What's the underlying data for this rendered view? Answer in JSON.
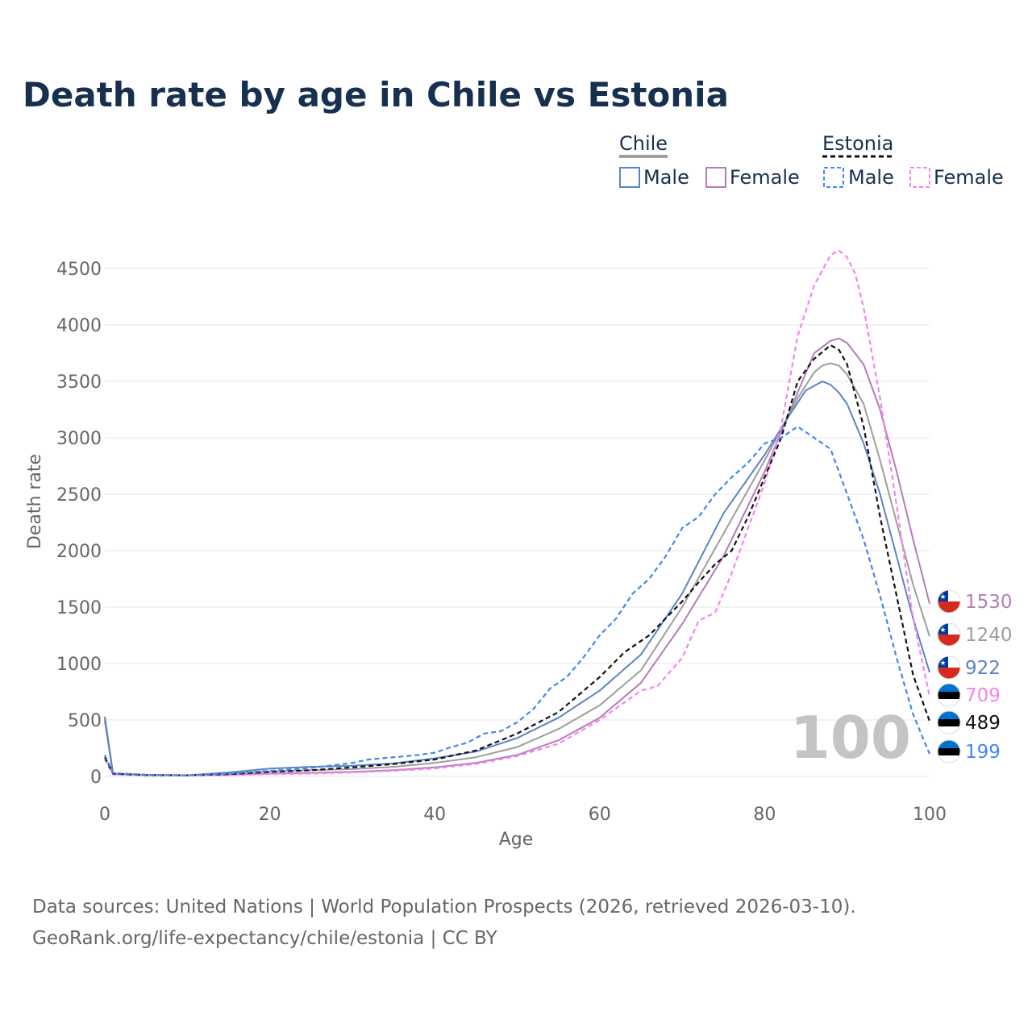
{
  "chart_data": {
    "type": "line",
    "title": "Death rate by age in Chile vs Estonia",
    "xlabel": "Age",
    "ylabel": "Death rate",
    "xlim": [
      0,
      100
    ],
    "ylim": [
      0,
      4700
    ],
    "xticks": [
      0,
      20,
      40,
      60,
      80,
      100
    ],
    "yticks": [
      0,
      500,
      1000,
      1500,
      2000,
      2500,
      3000,
      3500,
      4000,
      4500
    ],
    "watermark_age": "100",
    "legend": {
      "groups": [
        {
          "country": "Chile",
          "items": [
            "Male",
            "Female"
          ]
        },
        {
          "country": "Estonia",
          "items": [
            "Male",
            "Female"
          ]
        }
      ]
    },
    "series": [
      {
        "name": "Chile Female",
        "country": "Chile",
        "sex": "Female",
        "color": "#b47cb8",
        "dashed": false,
        "end_label": "1530",
        "x": [
          0,
          1,
          5,
          10,
          15,
          20,
          25,
          30,
          35,
          40,
          45,
          50,
          55,
          60,
          65,
          70,
          75,
          80,
          84,
          86,
          88,
          89,
          90,
          92,
          94,
          96,
          98,
          100
        ],
        "values": [
          490,
          20,
          12,
          10,
          15,
          25,
          32,
          40,
          55,
          80,
          120,
          190,
          320,
          520,
          830,
          1350,
          1950,
          2700,
          3400,
          3750,
          3860,
          3880,
          3840,
          3650,
          3250,
          2700,
          2100,
          1530
        ]
      },
      {
        "name": "Chile Total",
        "country": "Chile",
        "sex": "Total",
        "color": "#9e9e9e",
        "dashed": false,
        "end_label": "1240",
        "x": [
          0,
          1,
          5,
          10,
          15,
          20,
          25,
          30,
          35,
          40,
          45,
          50,
          55,
          60,
          65,
          70,
          75,
          80,
          84,
          86,
          87,
          88,
          89,
          90,
          92,
          94,
          96,
          98,
          100
        ],
        "values": [
          510,
          22,
          12,
          10,
          25,
          45,
          55,
          65,
          85,
          120,
          170,
          260,
          420,
          630,
          940,
          1500,
          2150,
          2800,
          3350,
          3580,
          3640,
          3660,
          3640,
          3560,
          3300,
          2800,
          2250,
          1700,
          1240
        ]
      },
      {
        "name": "Chile Male",
        "country": "Chile",
        "sex": "Male",
        "color": "#5b84c4",
        "dashed": false,
        "end_label": "922",
        "x": [
          0,
          1,
          5,
          10,
          15,
          20,
          25,
          30,
          35,
          40,
          45,
          50,
          55,
          60,
          65,
          70,
          75,
          80,
          83,
          85,
          87,
          88,
          89,
          90,
          92,
          94,
          96,
          98,
          100
        ],
        "values": [
          530,
          25,
          13,
          10,
          35,
          70,
          85,
          95,
          115,
          160,
          220,
          340,
          520,
          760,
          1080,
          1620,
          2330,
          2850,
          3200,
          3420,
          3500,
          3470,
          3400,
          3300,
          2950,
          2500,
          1950,
          1400,
          922
        ]
      },
      {
        "name": "Estonia Female",
        "country": "Estonia",
        "sex": "Female",
        "color": "#f584f2",
        "dashed": true,
        "end_label": "709",
        "x": [
          0,
          1,
          5,
          10,
          15,
          20,
          25,
          30,
          35,
          40,
          45,
          50,
          55,
          60,
          65,
          67,
          70,
          72,
          74,
          76,
          78,
          80,
          82,
          84,
          86,
          88,
          89,
          90,
          91,
          92,
          94,
          96,
          98,
          100
        ],
        "values": [
          150,
          18,
          10,
          8,
          12,
          20,
          25,
          35,
          50,
          70,
          110,
          180,
          290,
          500,
          760,
          800,
          1050,
          1380,
          1450,
          1800,
          2200,
          2600,
          3100,
          3900,
          4350,
          4620,
          4660,
          4600,
          4450,
          4150,
          3350,
          2400,
          1400,
          709
        ]
      },
      {
        "name": "Estonia Total",
        "country": "Estonia",
        "sex": "Total",
        "color": "#111111",
        "dashed": true,
        "end_label": "489",
        "x": [
          0,
          1,
          5,
          10,
          15,
          20,
          25,
          30,
          35,
          40,
          45,
          50,
          55,
          60,
          63,
          66,
          68,
          70,
          72,
          74,
          76,
          78,
          80,
          82,
          84,
          86,
          88,
          89,
          90,
          92,
          94,
          96,
          98,
          100
        ],
        "values": [
          170,
          25,
          12,
          10,
          20,
          40,
          55,
          80,
          110,
          150,
          230,
          380,
          570,
          880,
          1100,
          1250,
          1400,
          1550,
          1720,
          1880,
          2000,
          2300,
          2650,
          3000,
          3500,
          3700,
          3820,
          3780,
          3650,
          3100,
          2300,
          1600,
          900,
          489
        ]
      },
      {
        "name": "Estonia Male",
        "country": "Estonia",
        "sex": "Male",
        "color": "#4287f5",
        "dashed": true,
        "end_label": "199",
        "x": [
          0,
          1,
          5,
          10,
          15,
          20,
          25,
          30,
          32,
          35,
          38,
          40,
          42,
          44,
          46,
          48,
          50,
          52,
          54,
          56,
          58,
          60,
          62,
          64,
          66,
          68,
          70,
          72,
          74,
          76,
          78,
          80,
          82,
          84,
          86,
          88,
          90,
          92,
          94,
          96,
          98,
          100
        ],
        "values": [
          190,
          30,
          15,
          10,
          25,
          50,
          75,
          120,
          150,
          170,
          190,
          210,
          260,
          300,
          380,
          400,
          480,
          600,
          780,
          880,
          1050,
          1250,
          1400,
          1620,
          1750,
          1950,
          2200,
          2300,
          2500,
          2650,
          2780,
          2950,
          3000,
          3100,
          3000,
          2900,
          2500,
          2100,
          1600,
          1050,
          550,
          199
        ]
      }
    ]
  },
  "source": {
    "line1": "Data sources: United Nations | World Population Prospects (2026, retrieved 2026-03-10).",
    "line2": "GeoRank.org/life-expectancy/chile/estonia | CC BY"
  }
}
